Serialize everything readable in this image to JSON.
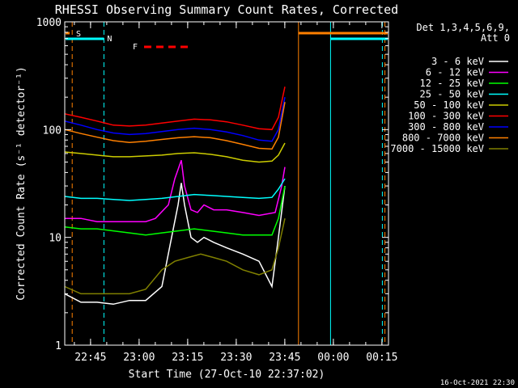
{
  "chart_data": {
    "type": "line",
    "title": "RHESSI Observing Summary Count Rates, Corrected",
    "xlabel": "Start Time (27-Oct-10 22:37:02)",
    "ylabel": "Corrected Count Rate (s⁻¹ detector⁻¹)",
    "yscale": "log",
    "ylim": [
      1,
      1000
    ],
    "xlim_minutes": [
      0,
      100
    ],
    "xticks": [
      {
        "label": "22:45",
        "t": 7.97
      },
      {
        "label": "23:00",
        "t": 22.97
      },
      {
        "label": "23:15",
        "t": 37.97
      },
      {
        "label": "23:30",
        "t": 52.97
      },
      {
        "label": "23:45",
        "t": 67.97
      },
      {
        "label": "00:00",
        "t": 82.97
      },
      {
        "label": "00:15",
        "t": 97.97
      }
    ],
    "yticks": [
      {
        "label": "1",
        "v": 1
      },
      {
        "label": "10",
        "v": 10
      },
      {
        "label": "100",
        "v": 100
      },
      {
        "label": "1000",
        "v": 1000
      }
    ],
    "legend_header": [
      "Det 1,3,4,5,6,9,",
      "Att 0"
    ],
    "series": [
      {
        "name": "3 - 6 keV",
        "color": "#ffffff",
        "points": [
          [
            0,
            3
          ],
          [
            5,
            2.5
          ],
          [
            10,
            2.5
          ],
          [
            15,
            2.4
          ],
          [
            20,
            2.6
          ],
          [
            25,
            2.6
          ],
          [
            30,
            3.5
          ],
          [
            33,
            10
          ],
          [
            35,
            20
          ],
          [
            36,
            32
          ],
          [
            37,
            20
          ],
          [
            39,
            10
          ],
          [
            41,
            9
          ],
          [
            43,
            10
          ],
          [
            46,
            9
          ],
          [
            50,
            8
          ],
          [
            55,
            7
          ],
          [
            60,
            6
          ],
          [
            64,
            3.5
          ],
          [
            66,
            10
          ],
          [
            68,
            30
          ]
        ]
      },
      {
        "name": "6 - 12 keV",
        "color": "#ff00ff",
        "points": [
          [
            0,
            15
          ],
          [
            5,
            15
          ],
          [
            10,
            14
          ],
          [
            15,
            14
          ],
          [
            20,
            14
          ],
          [
            25,
            14
          ],
          [
            28,
            15
          ],
          [
            32,
            20
          ],
          [
            34,
            35
          ],
          [
            36,
            52
          ],
          [
            37,
            30
          ],
          [
            39,
            18
          ],
          [
            41,
            17
          ],
          [
            43,
            20
          ],
          [
            46,
            18
          ],
          [
            50,
            18
          ],
          [
            55,
            17
          ],
          [
            60,
            16
          ],
          [
            65,
            17
          ],
          [
            67,
            30
          ],
          [
            68,
            45
          ]
        ]
      },
      {
        "name": "12 - 25 keV",
        "color": "#00ff00",
        "points": [
          [
            0,
            12.5
          ],
          [
            5,
            12
          ],
          [
            10,
            12
          ],
          [
            15,
            11.5
          ],
          [
            20,
            11
          ],
          [
            25,
            10.5
          ],
          [
            30,
            11
          ],
          [
            35,
            11.5
          ],
          [
            40,
            12
          ],
          [
            45,
            11.5
          ],
          [
            50,
            11
          ],
          [
            55,
            10.5
          ],
          [
            60,
            10.5
          ],
          [
            64,
            10.5
          ],
          [
            66,
            15
          ],
          [
            68,
            30
          ]
        ]
      },
      {
        "name": "25 - 50 keV",
        "color": "#00ffff",
        "points": [
          [
            0,
            24
          ],
          [
            5,
            23
          ],
          [
            10,
            23
          ],
          [
            15,
            22.5
          ],
          [
            20,
            22
          ],
          [
            25,
            22.5
          ],
          [
            30,
            23
          ],
          [
            35,
            24
          ],
          [
            40,
            25
          ],
          [
            45,
            24.5
          ],
          [
            50,
            24
          ],
          [
            55,
            23.5
          ],
          [
            60,
            23
          ],
          [
            64,
            23.5
          ],
          [
            66,
            28
          ],
          [
            68,
            35
          ]
        ]
      },
      {
        "name": "50 - 100 keV",
        "color": "#cccc00",
        "points": [
          [
            0,
            62
          ],
          [
            5,
            60
          ],
          [
            10,
            58
          ],
          [
            15,
            56
          ],
          [
            20,
            56
          ],
          [
            25,
            57
          ],
          [
            30,
            58
          ],
          [
            35,
            60
          ],
          [
            40,
            61
          ],
          [
            45,
            59
          ],
          [
            50,
            56
          ],
          [
            55,
            52
          ],
          [
            60,
            50
          ],
          [
            64,
            51
          ],
          [
            66,
            58
          ],
          [
            68,
            75
          ]
        ]
      },
      {
        "name": "100 - 300 keV",
        "color": "#ff0000",
        "points": [
          [
            0,
            140
          ],
          [
            5,
            130
          ],
          [
            10,
            120
          ],
          [
            15,
            110
          ],
          [
            20,
            108
          ],
          [
            25,
            110
          ],
          [
            30,
            115
          ],
          [
            35,
            120
          ],
          [
            40,
            125
          ],
          [
            45,
            123
          ],
          [
            50,
            118
          ],
          [
            55,
            110
          ],
          [
            60,
            102
          ],
          [
            64,
            100
          ],
          [
            66,
            130
          ],
          [
            68,
            250
          ]
        ]
      },
      {
        "name": "300 - 800 keV",
        "color": "#0000ff",
        "points": [
          [
            0,
            120
          ],
          [
            5,
            110
          ],
          [
            10,
            100
          ],
          [
            15,
            93
          ],
          [
            20,
            90
          ],
          [
            25,
            92
          ],
          [
            30,
            96
          ],
          [
            35,
            100
          ],
          [
            40,
            103
          ],
          [
            45,
            100
          ],
          [
            50,
            95
          ],
          [
            55,
            88
          ],
          [
            60,
            80
          ],
          [
            64,
            78
          ],
          [
            66,
            100
          ],
          [
            68,
            200
          ]
        ]
      },
      {
        "name": "800 - 7000 keV",
        "color": "#ff8000",
        "points": [
          [
            0,
            100
          ],
          [
            5,
            92
          ],
          [
            10,
            85
          ],
          [
            15,
            79
          ],
          [
            20,
            76
          ],
          [
            25,
            78
          ],
          [
            30,
            81
          ],
          [
            35,
            84
          ],
          [
            40,
            86
          ],
          [
            45,
            84
          ],
          [
            50,
            79
          ],
          [
            55,
            73
          ],
          [
            60,
            67
          ],
          [
            64,
            66
          ],
          [
            66,
            85
          ],
          [
            68,
            180
          ]
        ]
      },
      {
        "name": "7000 - 15000 keV",
        "color": "#808000",
        "points": [
          [
            0,
            3.5
          ],
          [
            5,
            3.0
          ],
          [
            10,
            3.0
          ],
          [
            15,
            3.0
          ],
          [
            20,
            3.0
          ],
          [
            25,
            3.3
          ],
          [
            30,
            5.0
          ],
          [
            34,
            6.0
          ],
          [
            38,
            6.5
          ],
          [
            42,
            7.0
          ],
          [
            46,
            6.5
          ],
          [
            50,
            6.0
          ],
          [
            55,
            5.0
          ],
          [
            60,
            4.5
          ],
          [
            64,
            5.0
          ],
          [
            66,
            8.0
          ],
          [
            68,
            15
          ]
        ]
      }
    ],
    "flag_lines": [
      {
        "label": "S",
        "color": "#ff8000",
        "t_dashed": [
          2.3,
          98.9
        ]
      },
      {
        "label": "N",
        "color": "#00ffff",
        "t_dashed": [
          12.1,
          98.1
        ]
      }
    ],
    "bars": [
      {
        "label": "S",
        "color": "#ff8000"
      },
      {
        "label": "N",
        "color": "#00ffff"
      },
      {
        "label": "F",
        "color": "#ff0000"
      }
    ],
    "footer_date": "16-Oct-2021 22:30",
    "grid": false,
    "legend_position": "right"
  }
}
